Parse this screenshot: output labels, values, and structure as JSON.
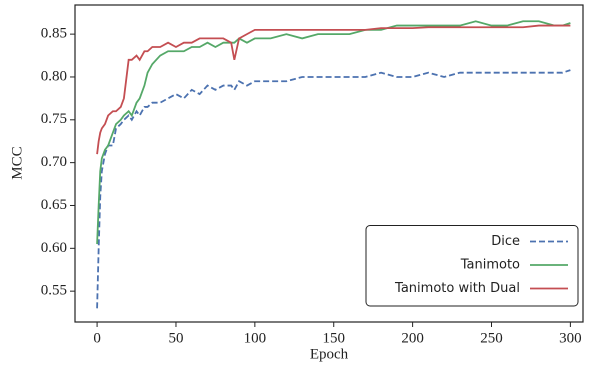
{
  "chart_data": {
    "type": "line",
    "xlabel": "Epoch",
    "ylabel": "MCC",
    "x": [
      0,
      1,
      2,
      3,
      5,
      7,
      10,
      12,
      15,
      17,
      20,
      22,
      25,
      27,
      30,
      32,
      35,
      40,
      45,
      50,
      55,
      60,
      65,
      70,
      75,
      80,
      85,
      87,
      90,
      95,
      100,
      110,
      120,
      130,
      140,
      150,
      160,
      170,
      180,
      190,
      200,
      210,
      220,
      230,
      240,
      250,
      260,
      270,
      280,
      290,
      295,
      300
    ],
    "series": [
      {
        "name": "Dice",
        "color": "#4c72b0",
        "linestyle": "dashed",
        "values": [
          0.53,
          0.6,
          0.66,
          0.69,
          0.71,
          0.72,
          0.72,
          0.74,
          0.745,
          0.75,
          0.755,
          0.75,
          0.76,
          0.755,
          0.765,
          0.765,
          0.77,
          0.77,
          0.775,
          0.78,
          0.775,
          0.785,
          0.78,
          0.79,
          0.785,
          0.79,
          0.79,
          0.785,
          0.795,
          0.79,
          0.795,
          0.795,
          0.795,
          0.8,
          0.8,
          0.8,
          0.8,
          0.8,
          0.805,
          0.8,
          0.8,
          0.805,
          0.8,
          0.805,
          0.805,
          0.805,
          0.805,
          0.805,
          0.805,
          0.805,
          0.805,
          0.808
        ]
      },
      {
        "name": "Tanimoto",
        "color": "#55a868",
        "linestyle": "solid",
        "values": [
          0.605,
          0.65,
          0.69,
          0.705,
          0.715,
          0.72,
          0.735,
          0.745,
          0.75,
          0.755,
          0.76,
          0.755,
          0.77,
          0.775,
          0.79,
          0.805,
          0.815,
          0.825,
          0.83,
          0.83,
          0.83,
          0.835,
          0.835,
          0.84,
          0.835,
          0.84,
          0.84,
          0.84,
          0.845,
          0.84,
          0.845,
          0.845,
          0.85,
          0.845,
          0.85,
          0.85,
          0.85,
          0.855,
          0.855,
          0.86,
          0.86,
          0.86,
          0.86,
          0.86,
          0.865,
          0.86,
          0.86,
          0.865,
          0.865,
          0.86,
          0.86,
          0.863
        ]
      },
      {
        "name": "Tanimoto with Dual",
        "color": "#c44e52",
        "linestyle": "solid",
        "values": [
          0.71,
          0.725,
          0.735,
          0.74,
          0.745,
          0.755,
          0.76,
          0.76,
          0.765,
          0.775,
          0.82,
          0.82,
          0.825,
          0.82,
          0.83,
          0.83,
          0.835,
          0.835,
          0.84,
          0.835,
          0.84,
          0.84,
          0.845,
          0.845,
          0.845,
          0.845,
          0.84,
          0.82,
          0.845,
          0.85,
          0.855,
          0.855,
          0.855,
          0.855,
          0.855,
          0.855,
          0.855,
          0.855,
          0.857,
          0.857,
          0.857,
          0.858,
          0.858,
          0.858,
          0.858,
          0.858,
          0.858,
          0.858,
          0.86,
          0.86,
          0.86,
          0.86
        ]
      }
    ],
    "xlim": [
      -14,
      308
    ],
    "ylim": [
      0.514,
      0.884
    ],
    "xticks": [
      0,
      50,
      100,
      150,
      200,
      250,
      300
    ],
    "yticks": [
      0.55,
      {
        "value": 0.6,
        "label": "0.60"
      },
      0.65,
      {
        "value": 0.7,
        "label": "0.70"
      },
      0.75,
      {
        "value": 0.8,
        "label": "0.80"
      },
      0.85
    ],
    "grid": false,
    "legend": "lower right"
  }
}
